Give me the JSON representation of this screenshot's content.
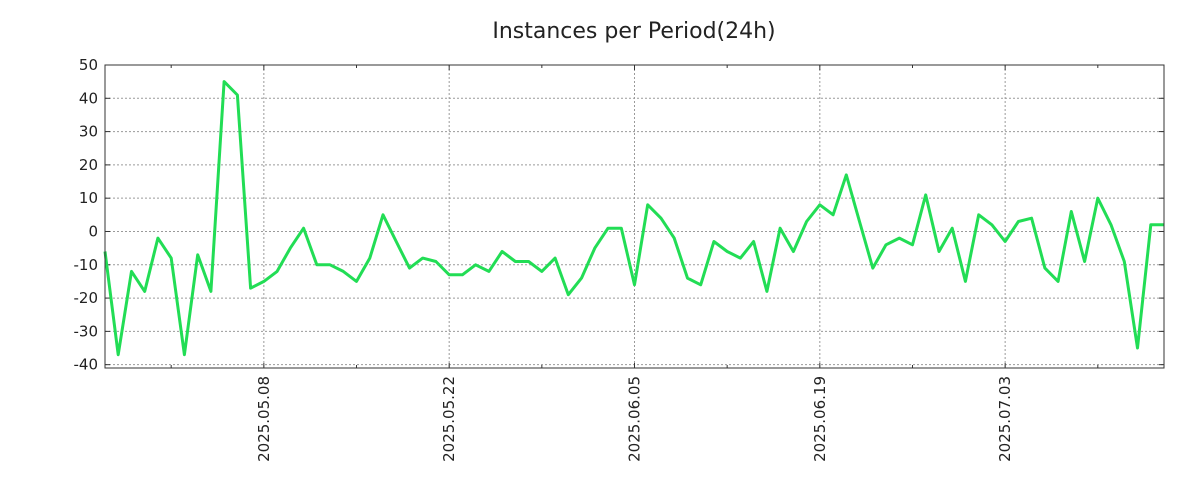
{
  "chart_data": {
    "type": "line",
    "title": "Instances per Period(24h)",
    "xlabel": "",
    "ylabel": "",
    "ylim": [
      -41,
      50
    ],
    "yticks": [
      50,
      40,
      30,
      20,
      10,
      0,
      -10,
      -20,
      -30,
      -40
    ],
    "xticks": [
      {
        "day": 12,
        "label": "2025.05.08"
      },
      {
        "day": 26,
        "label": "2025.05.22"
      },
      {
        "day": 40,
        "label": "2025.06.05"
      },
      {
        "day": 54,
        "label": "2025.06.19"
      },
      {
        "day": 68,
        "label": "2025.07.03"
      }
    ],
    "x_minor_ticks": [
      5,
      19,
      33,
      47,
      61,
      75
    ],
    "grid": true,
    "legend": "none",
    "color": "#22dd55",
    "series": [
      {
        "values": [
          -6,
          -37,
          -12,
          -18,
          -2,
          -8,
          -37,
          -7,
          -18,
          45,
          41,
          -17,
          -15,
          -12,
          -5,
          1,
          -10,
          -10,
          -12,
          -15,
          -8,
          5,
          -3,
          -11,
          -8,
          -9,
          -13,
          -13,
          -10,
          -12,
          -6,
          -9,
          -9,
          -12,
          -8,
          -19,
          -14,
          -5,
          1,
          1,
          -16,
          8,
          4,
          -2,
          -14,
          -16,
          -3,
          -6,
          -8,
          -3,
          -18,
          1,
          -6,
          3,
          8,
          5,
          17,
          3,
          -11,
          -4,
          -2,
          -4,
          11,
          -6,
          1,
          -15,
          5,
          2,
          -3,
          3,
          4,
          -11,
          -15,
          6,
          -9,
          10,
          2,
          -9,
          -35,
          2,
          2
        ]
      }
    ]
  }
}
